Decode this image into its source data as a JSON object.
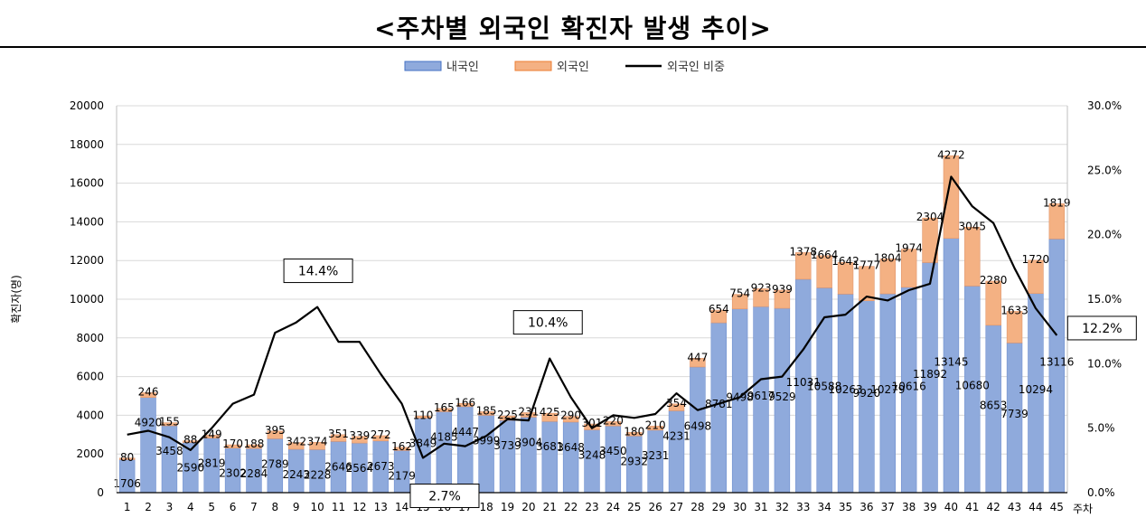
{
  "title": "<주차별 외국인 확진자 발생 추이>",
  "chart_data": {
    "type": "bar+line",
    "title": "<주차별 외국인 확진자 발생 추이>",
    "ylabel": "확진자(명)",
    "xlabel": "주차",
    "ylim": [
      0,
      20000
    ],
    "y_ticks": [
      "0",
      "2000",
      "4000",
      "6000",
      "8000",
      "10000",
      "12000",
      "14000",
      "16000",
      "18000",
      "20000"
    ],
    "y2lim": [
      0,
      30
    ],
    "y2_ticks": [
      "0.0%",
      "5.0%",
      "10.0%",
      "15.0%",
      "20.0%",
      "25.0%",
      "30.0%"
    ],
    "categories": [
      "1",
      "2",
      "3",
      "4",
      "5",
      "6",
      "7",
      "8",
      "9",
      "10",
      "11",
      "12",
      "13",
      "14",
      "15",
      "16",
      "17",
      "18",
      "19",
      "20",
      "21",
      "22",
      "23",
      "24",
      "25",
      "26",
      "27",
      "28",
      "29",
      "30",
      "31",
      "32",
      "33",
      "34",
      "35",
      "36",
      "37",
      "38",
      "39",
      "40",
      "41",
      "42",
      "43",
      "44",
      "45"
    ],
    "legend": [
      "내국인",
      "외국인",
      "외국인 비중"
    ],
    "series": [
      {
        "name": "내국인",
        "color": "#8faadc",
        "values": [
          1706,
          4920,
          3458,
          2590,
          2819,
          2302,
          2284,
          2789,
          2243,
          2228,
          2646,
          2564,
          2673,
          2179,
          3849,
          4185,
          4447,
          3999,
          3739,
          3904,
          3681,
          3648,
          3248,
          3450,
          2932,
          3231,
          4231,
          6498,
          8781,
          9498,
          9617,
          9529,
          11031,
          10588,
          10263,
          9920,
          10279,
          10616,
          11892,
          13145,
          10680,
          8653,
          7739,
          10294,
          13116
        ],
        "labels": [
          "1706",
          "4920",
          "3458",
          "2590",
          "2819",
          "2302",
          "2284",
          "2789",
          "2243",
          "2228",
          "2646",
          "2564",
          "2673",
          "2179",
          "3849",
          "4185",
          "4447",
          "3999",
          "3739",
          "3904",
          "3681",
          "3648",
          "3248",
          "3450",
          "2932",
          "3231",
          "4231",
          "6498",
          "8781",
          "9498",
          "9617",
          "9529",
          "11031",
          "10588",
          "10263",
          "9920",
          "10279",
          "10616",
          "11892",
          "13145",
          "10680",
          "8653",
          "7739",
          "10294",
          "13116"
        ]
      },
      {
        "name": "외국인",
        "color": "#f4b183",
        "values": [
          80,
          246,
          155,
          88,
          149,
          170,
          188,
          395,
          342,
          374,
          351,
          339,
          272,
          162,
          110,
          165,
          166,
          185,
          225,
          231,
          425,
          290,
          301,
          220,
          180,
          210,
          354,
          447,
          654,
          754,
          923,
          939,
          1378,
          1664,
          1642,
          1777,
          1804,
          1974,
          2304,
          4272,
          3045,
          2280,
          1633,
          1720,
          1819
        ],
        "labels": [
          "80",
          "246",
          "155",
          "88",
          "149",
          "170",
          "188",
          "395",
          "342",
          "374",
          "351",
          "339",
          "272",
          "162",
          "110",
          "165",
          "166",
          "185",
          "225",
          "231",
          "425",
          "290",
          "301",
          "220",
          "180",
          "210",
          "354",
          "447",
          "654",
          "754",
          "923",
          "939",
          "1378",
          "1664",
          "1642",
          "1777",
          "1804",
          "1974",
          "2304",
          "4272",
          "3045",
          "2280",
          "1633",
          "1720",
          "1819"
        ]
      },
      {
        "name": "외국인 비중",
        "color": "#000000",
        "axis": "right",
        "values": [
          4.5,
          4.8,
          4.3,
          3.3,
          5.0,
          6.9,
          7.6,
          12.4,
          13.2,
          14.4,
          11.7,
          11.7,
          9.2,
          6.9,
          2.7,
          3.8,
          3.6,
          4.4,
          5.7,
          5.6,
          10.4,
          7.4,
          5.0,
          6.0,
          5.8,
          6.1,
          7.7,
          6.4,
          6.9,
          7.4,
          8.8,
          9.0,
          11.1,
          13.6,
          13.8,
          15.2,
          14.9,
          15.7,
          16.2,
          24.5,
          22.2,
          20.9,
          17.4,
          14.3,
          12.2
        ]
      }
    ],
    "annotations": [
      {
        "category": "10",
        "text": "14.4%"
      },
      {
        "category": "15",
        "text": "2.7%"
      },
      {
        "category": "21",
        "text": "10.4%"
      },
      {
        "category": "45",
        "text": "12.2%"
      }
    ],
    "grid": true,
    "legend_position": "top-center"
  }
}
